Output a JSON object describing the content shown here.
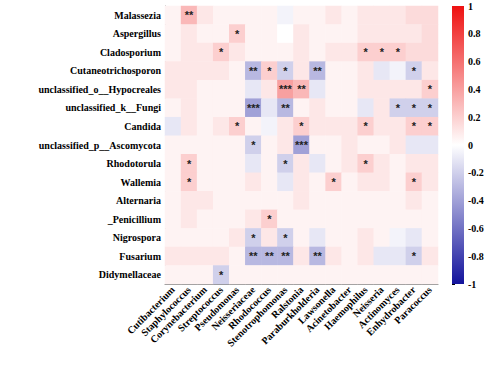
{
  "chart_data": {
    "type": "heatmap",
    "x": [
      "Cutibacterium",
      "Staphylococcus",
      "Corynebacterium",
      "Streptococcus",
      "Pseudomonas",
      "Neisseriaceae",
      "Rhodococcus",
      "Stenotrophomonas",
      "Ralstonia",
      "Paraburkholderia",
      "Lawsonella",
      "Acinetobacter",
      "Haemophilus",
      "Neisseria",
      "Actinomyces",
      "Enhydrobacter",
      "Paracoccus"
    ],
    "y": [
      "Malassezia",
      "Aspergillus",
      "Cladosporium",
      "Cutaneotrichosporon",
      "unclassified_o__Hypocreales",
      "unclassified_k__Fungi",
      "Candida",
      "unclassified_p__Ascomycota",
      "Rhodotorula",
      "Wallemia",
      "Alternaria",
      "_Penicillium",
      "Nigrospora",
      "Fusarium",
      "Didymellaceae"
    ],
    "cells": [
      [
        0.05,
        0.3,
        0.1,
        0.05,
        0.05,
        0.05,
        0.05,
        -0.05,
        0.05,
        0.05,
        0.1,
        0.05,
        0.1,
        0.1,
        0.1,
        0.15,
        0.15
      ],
      [
        0.05,
        0.1,
        0.05,
        0.05,
        0.2,
        0.05,
        0.05,
        0.0,
        0.1,
        0.05,
        0.05,
        0.05,
        0.1,
        0.1,
        0.1,
        0.1,
        0.15
      ],
      [
        0.05,
        0.1,
        0.1,
        0.2,
        0.1,
        0.05,
        0.05,
        0.05,
        0.1,
        0.05,
        0.1,
        0.1,
        0.2,
        0.2,
        0.2,
        0.15,
        0.15
      ],
      [
        0.1,
        0.1,
        0.1,
        0.1,
        0.05,
        -0.3,
        0.2,
        -0.2,
        0.1,
        -0.3,
        0.05,
        0.05,
        0.1,
        -0.1,
        -0.05,
        -0.2,
        0.1
      ],
      [
        0.1,
        0.1,
        0.05,
        0.05,
        0.05,
        -0.1,
        0.1,
        0.4,
        0.3,
        -0.1,
        0.05,
        0.05,
        0.1,
        0.1,
        0.1,
        0.1,
        0.2
      ],
      [
        0.05,
        0.1,
        0.05,
        0.05,
        0.05,
        -0.4,
        -0.1,
        -0.3,
        0.05,
        0.1,
        0.05,
        0.05,
        -0.1,
        0.1,
        -0.2,
        -0.2,
        -0.2
      ],
      [
        -0.1,
        0.1,
        0.05,
        0.1,
        0.2,
        0.05,
        -0.05,
        0.1,
        0.2,
        0.1,
        0.1,
        0.1,
        0.2,
        0.1,
        0.1,
        0.2,
        0.2
      ],
      [
        0.05,
        0.05,
        0.05,
        0.05,
        0.05,
        -0.2,
        0.05,
        0.1,
        -0.4,
        0.05,
        0.05,
        0.1,
        0.05,
        0.05,
        0.1,
        -0.1,
        -0.1
      ],
      [
        0.05,
        0.2,
        0.05,
        0.05,
        0.05,
        -0.1,
        0.05,
        -0.2,
        0.1,
        -0.1,
        0.05,
        0.1,
        0.2,
        0.1,
        0.05,
        0.1,
        0.1
      ],
      [
        0.05,
        0.2,
        0.05,
        0.05,
        0.05,
        0.1,
        0.05,
        -0.1,
        0.1,
        0.05,
        0.2,
        0.05,
        0.1,
        0.1,
        0.05,
        0.2,
        0.1
      ],
      [
        0.05,
        0.1,
        0.1,
        0.05,
        0.05,
        0.05,
        0.05,
        0.05,
        0.1,
        0.05,
        0.05,
        0.05,
        0.05,
        0.05,
        0.05,
        0.1,
        0.05
      ],
      [
        0.05,
        0.1,
        0.05,
        0.05,
        0.05,
        0.1,
        0.2,
        0.05,
        0.05,
        0.05,
        0.05,
        0.05,
        0.05,
        0.05,
        0.05,
        0.05,
        0.05
      ],
      [
        0.05,
        0.05,
        0.05,
        0.05,
        0.1,
        -0.2,
        0.1,
        -0.2,
        0.05,
        -0.1,
        0.05,
        0.05,
        0.1,
        0.05,
        -0.05,
        -0.1,
        0.05
      ],
      [
        0.1,
        0.1,
        0.1,
        0.1,
        0.05,
        -0.3,
        -0.3,
        -0.3,
        0.1,
        -0.3,
        0.1,
        0.05,
        0.1,
        -0.1,
        -0.1,
        -0.2,
        0.1
      ],
      [
        0.05,
        0.05,
        0.05,
        -0.2,
        0.05,
        0.05,
        0.05,
        0.05,
        0.05,
        0.05,
        0.05,
        0.05,
        0.05,
        0.05,
        0.05,
        0.05,
        0.05
      ]
    ],
    "significance": [
      [
        null,
        "**",
        null,
        null,
        null,
        null,
        null,
        null,
        null,
        null,
        null,
        null,
        null,
        null,
        null,
        null,
        null
      ],
      [
        null,
        null,
        null,
        null,
        "*",
        null,
        null,
        null,
        null,
        null,
        null,
        null,
        null,
        null,
        null,
        null,
        null
      ],
      [
        null,
        null,
        null,
        "*",
        null,
        null,
        null,
        null,
        null,
        null,
        null,
        null,
        "*",
        "*",
        "*",
        null,
        null
      ],
      [
        null,
        null,
        null,
        null,
        null,
        "**",
        "*",
        "*",
        null,
        "**",
        null,
        null,
        null,
        null,
        null,
        "*",
        null
      ],
      [
        null,
        null,
        null,
        null,
        null,
        null,
        null,
        "***",
        "**",
        null,
        null,
        null,
        null,
        null,
        null,
        null,
        "*"
      ],
      [
        null,
        null,
        null,
        null,
        null,
        "***",
        null,
        "**",
        null,
        null,
        null,
        null,
        null,
        null,
        "*",
        "*",
        "*"
      ],
      [
        null,
        null,
        null,
        null,
        "*",
        null,
        null,
        null,
        "*",
        null,
        null,
        null,
        "*",
        null,
        null,
        "*",
        "*"
      ],
      [
        null,
        null,
        null,
        null,
        null,
        "*",
        null,
        null,
        "***",
        null,
        null,
        null,
        null,
        null,
        null,
        null,
        null
      ],
      [
        null,
        "*",
        null,
        null,
        null,
        null,
        null,
        "*",
        null,
        null,
        null,
        null,
        "*",
        null,
        null,
        null,
        null
      ],
      [
        null,
        "*",
        null,
        null,
        null,
        null,
        null,
        null,
        null,
        null,
        "*",
        null,
        null,
        null,
        null,
        "*",
        null
      ],
      [
        null,
        null,
        null,
        null,
        null,
        null,
        null,
        null,
        null,
        null,
        null,
        null,
        null,
        null,
        null,
        null,
        null
      ],
      [
        null,
        null,
        null,
        null,
        null,
        null,
        "*",
        null,
        null,
        null,
        null,
        null,
        null,
        null,
        null,
        null,
        null
      ],
      [
        null,
        null,
        null,
        null,
        null,
        "*",
        null,
        "*",
        null,
        null,
        null,
        null,
        null,
        null,
        null,
        null,
        null
      ],
      [
        null,
        null,
        null,
        null,
        null,
        "**",
        "**",
        "**",
        null,
        "**",
        null,
        null,
        null,
        null,
        null,
        "*",
        null
      ],
      [
        null,
        null,
        null,
        "*",
        null,
        null,
        null,
        null,
        null,
        null,
        null,
        null,
        null,
        null,
        null,
        null,
        null
      ]
    ],
    "colorbar_range": [
      -1,
      1
    ],
    "colorbar_ticks": [
      -1,
      -0.8,
      -0.6,
      -0.4,
      -0.2,
      0,
      0.2,
      0.4,
      0.6,
      0.8,
      1
    ]
  }
}
